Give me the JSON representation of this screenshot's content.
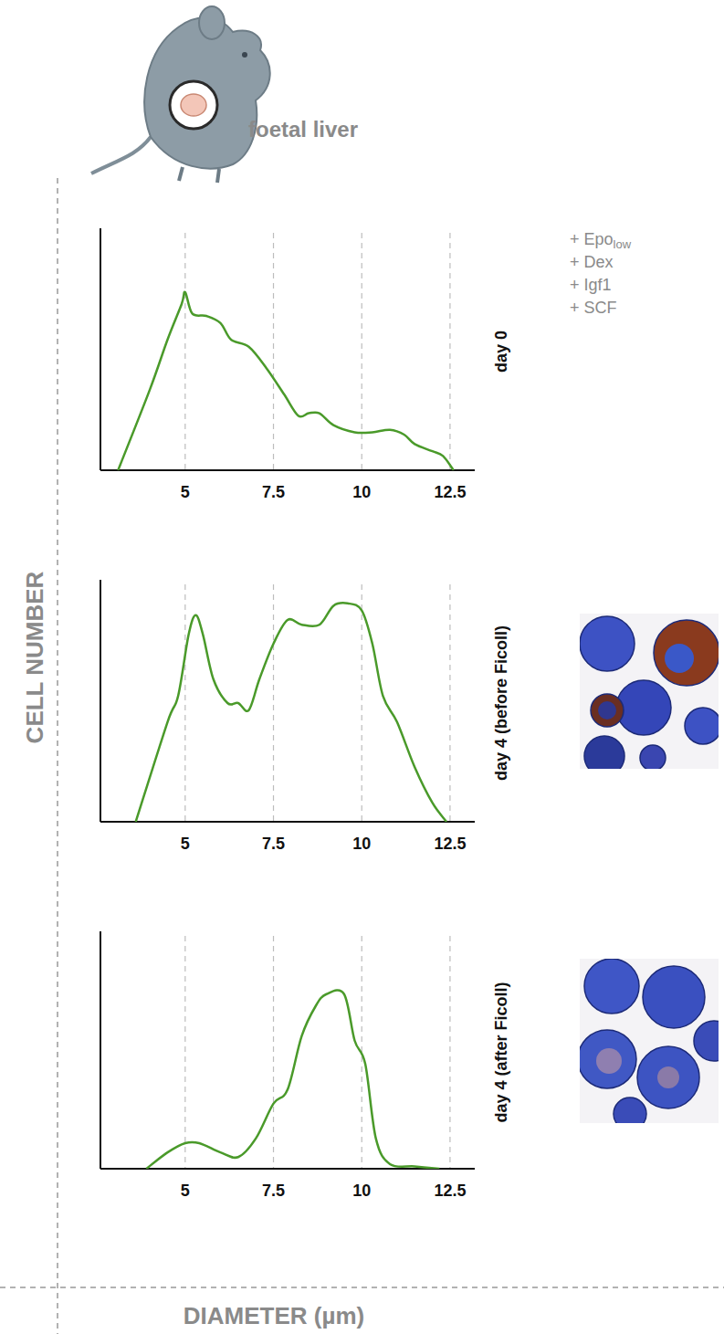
{
  "header": {
    "title": "foetal liver",
    "conditions": [
      {
        "text": "+ Epo",
        "subscript": "low"
      },
      "+ Dex",
      "+ Igf1",
      "+ SCF"
    ]
  },
  "axes": {
    "y_label": "CELL NUMBER",
    "x_label": "DIAMETER (µm)"
  },
  "chart_data": [
    {
      "type": "line",
      "title": "day 0",
      "color": "#4a9a2a",
      "grid": true,
      "tick_labels": "x",
      "xlim": [
        2.6,
        13.2
      ],
      "xticks": [
        5,
        7.5,
        10,
        12.5
      ],
      "ylim": [
        0,
        100
      ],
      "x": [
        3.1,
        4.0,
        4.5,
        4.9,
        5.0,
        5.2,
        5.6,
        6.0,
        6.3,
        6.8,
        7.3,
        7.8,
        8.2,
        8.5,
        8.8,
        9.2,
        9.8,
        10.3,
        10.8,
        11.2,
        11.5,
        12.0,
        12.3,
        12.6
      ],
      "values": [
        0,
        34,
        55,
        70,
        75,
        66,
        65,
        62,
        55,
        52,
        43,
        32,
        23,
        24,
        24,
        19,
        16,
        16,
        17,
        15,
        11,
        8,
        6,
        0
      ]
    },
    {
      "type": "line",
      "title": "day 4 (before Ficoll)",
      "color": "#4a9a2a",
      "grid": true,
      "tick_labels": "x",
      "xlim": [
        2.6,
        13.2
      ],
      "xticks": [
        5,
        7.5,
        10,
        12.5
      ],
      "ylim": [
        0,
        100
      ],
      "x": [
        3.6,
        4.5,
        4.8,
        5.1,
        5.3,
        5.5,
        5.8,
        6.2,
        6.5,
        6.8,
        7.1,
        7.5,
        7.9,
        8.3,
        8.8,
        9.2,
        9.6,
        10.0,
        10.3,
        10.6,
        11.0,
        11.5,
        12.0,
        12.4
      ],
      "values": [
        0,
        42,
        53,
        79,
        87,
        79,
        60,
        50,
        50,
        47,
        60,
        75,
        85,
        83,
        83,
        91,
        92,
        89,
        75,
        53,
        42,
        23,
        8,
        0
      ]
    },
    {
      "type": "line",
      "title": "day 4 (after Ficoll)",
      "color": "#4a9a2a",
      "grid": true,
      "tick_labels": "x",
      "xlim": [
        2.6,
        13.2
      ],
      "xticks": [
        5,
        7.5,
        10,
        12.5
      ],
      "ylim": [
        0,
        100
      ],
      "x": [
        3.9,
        4.5,
        5.0,
        5.4,
        6.0,
        6.5,
        7.0,
        7.5,
        7.9,
        8.3,
        8.7,
        9.0,
        9.5,
        9.8,
        10.1,
        10.4,
        10.8,
        11.5,
        12.2
      ],
      "values": [
        0,
        7,
        11,
        11,
        7,
        5,
        13,
        28,
        34,
        57,
        70,
        75,
        75,
        55,
        45,
        13,
        2,
        1,
        0
      ]
    }
  ]
}
